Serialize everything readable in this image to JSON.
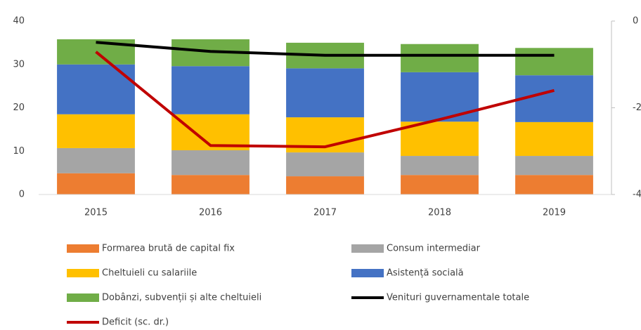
{
  "chart_data": {
    "type": "bar",
    "stacked": true,
    "categories": [
      "2015",
      "2016",
      "2017",
      "2018",
      "2019"
    ],
    "series": [
      {
        "name": "Formarea brută de capital fix",
        "color": "#ed7d31",
        "values": [
          4.9,
          4.5,
          4.2,
          4.5,
          4.5
        ]
      },
      {
        "name": "Consum intermediar",
        "color": "#a5a5a5",
        "values": [
          5.8,
          5.7,
          5.5,
          4.4,
          4.4
        ]
      },
      {
        "name": "Cheltuieli cu salariile",
        "color": "#ffc000",
        "values": [
          7.8,
          8.3,
          8.1,
          7.9,
          7.8
        ]
      },
      {
        "name": "Asistență socială",
        "color": "#4472c4",
        "values": [
          11.5,
          11.1,
          11.3,
          11.4,
          10.8
        ]
      },
      {
        "name": "Dobânzi, subvenții și alte cheltuieli",
        "color": "#70ad47",
        "values": [
          5.8,
          6.2,
          5.9,
          6.5,
          6.3
        ]
      },
      {
        "name": "Venituri guvernamentale totale",
        "color": "#000000",
        "type": "line",
        "values": [
          35.1,
          33.0,
          32.1,
          32.1,
          32.1
        ]
      },
      {
        "name": "Deficit (sc. dr.)",
        "color": "#c00000",
        "type": "line",
        "axis": "y2",
        "values": [
          -0.71,
          -2.87,
          -2.9,
          -2.27,
          -1.6
        ]
      }
    ],
    "ylim": [
      0,
      40
    ],
    "yticks": [
      0,
      10,
      20,
      30,
      40
    ],
    "y2lim": [
      -4,
      0
    ],
    "y2ticks": [
      0,
      -2,
      -4
    ],
    "grid": false
  }
}
